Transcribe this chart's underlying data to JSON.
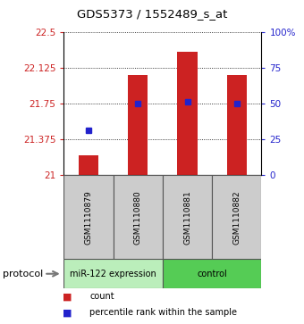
{
  "title": "GDS5373 / 1552489_s_at",
  "samples": [
    "GSM1110879",
    "GSM1110880",
    "GSM1110881",
    "GSM1110882"
  ],
  "bar_values": [
    21.21,
    22.05,
    22.3,
    22.05
  ],
  "percentile_values": [
    21.47,
    21.75,
    21.77,
    21.75
  ],
  "ylim_left": [
    21.0,
    22.5
  ],
  "ylim_right": [
    0,
    100
  ],
  "yticks_left": [
    21,
    21.375,
    21.75,
    22.125,
    22.5
  ],
  "yticks_right": [
    0,
    25,
    50,
    75,
    100
  ],
  "bar_color": "#cc2222",
  "dot_color": "#2222cc",
  "bar_bottom": 21.0,
  "protocol_groups": [
    {
      "label": "miR-122 expression",
      "indices": [
        0,
        1
      ],
      "color": "#bbeebb"
    },
    {
      "label": "control",
      "indices": [
        2,
        3
      ],
      "color": "#55cc55"
    }
  ],
  "protocol_label": "protocol",
  "legend_count_label": "count",
  "legend_pct_label": "percentile rank within the sample",
  "bar_width": 0.4
}
